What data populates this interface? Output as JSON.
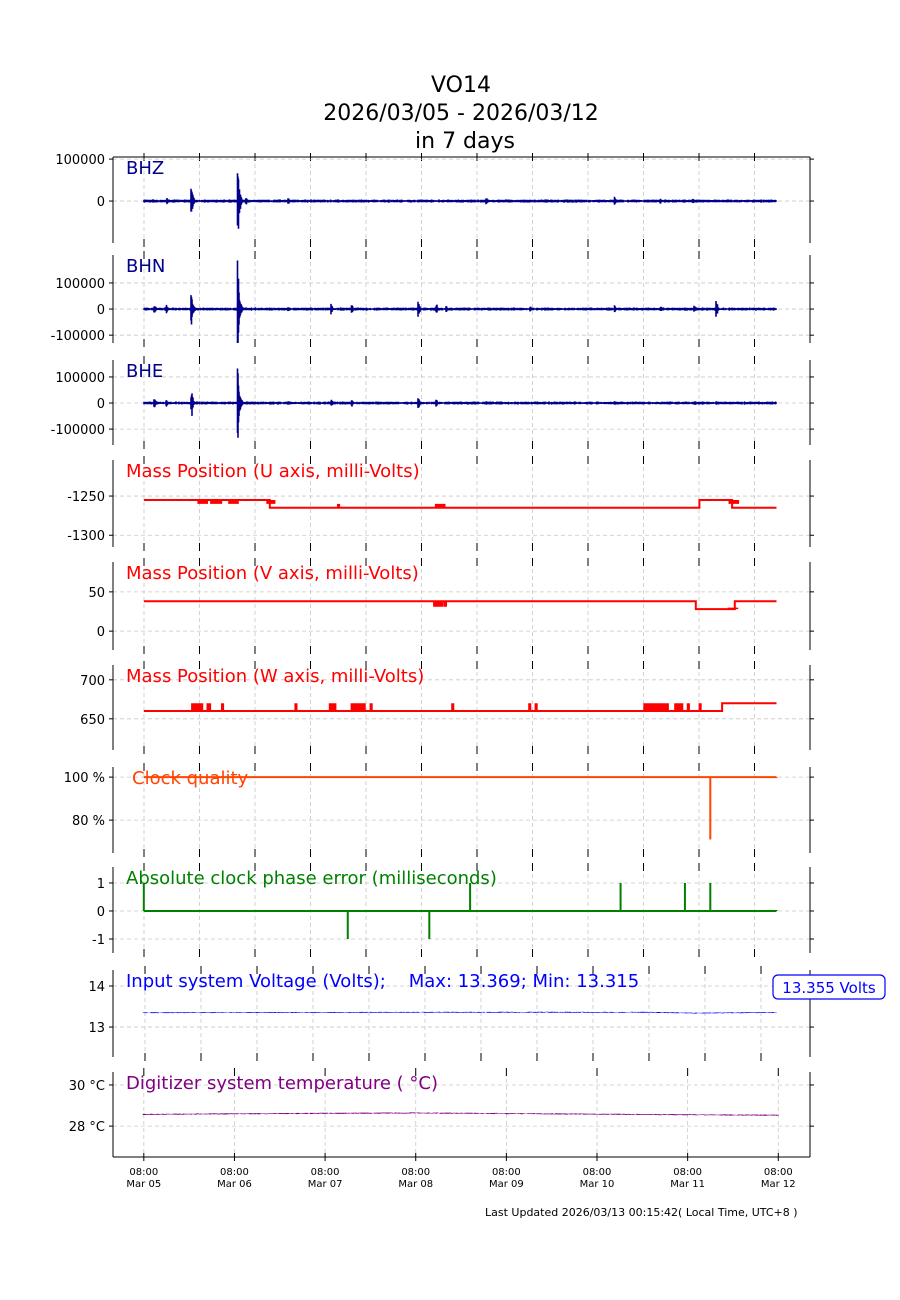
{
  "title": {
    "station": "VO14",
    "range": "2026/03/05 - 2026/03/12",
    "span": "in 7 days"
  },
  "footer": "Last Updated 2026/03/13 00:15:42( Local Time, UTC+8 )",
  "chart_data": {
    "type": "line",
    "x_unit": "days since 2026/03/05 08:00 (UTC+8)",
    "xlim": [
      -0.34,
      7.35
    ],
    "x_ticks": [
      {
        "time": "08:00",
        "date": "Mar 05"
      },
      {
        "time": "08:00",
        "date": "Mar 06"
      },
      {
        "time": "08:00",
        "date": "Mar 07"
      },
      {
        "time": "08:00",
        "date": "Mar 08"
      },
      {
        "time": "08:00",
        "date": "Mar 09"
      },
      {
        "time": "08:00",
        "date": "Mar 10"
      },
      {
        "time": "08:00",
        "date": "Mar 11"
      },
      {
        "time": "08:00",
        "date": "Mar 12"
      }
    ],
    "grid": true,
    "panels": [
      {
        "id": "bhz",
        "label": "BHZ",
        "color": "#00008b",
        "kind": "seismic",
        "ylim": [
          -100000,
          105000
        ],
        "yticks": [
          {
            "v": 100000,
            "t": "100000"
          },
          {
            "v": 0,
            "t": "0"
          }
        ],
        "noise": 2500,
        "events": [
          [
            0.1,
            6000
          ],
          [
            0.26,
            9000
          ],
          [
            0.53,
            40000
          ],
          [
            1.04,
            100000
          ],
          [
            1.13,
            12000
          ],
          [
            1.6,
            9000
          ],
          [
            3.78,
            10000
          ],
          [
            5.2,
            12000
          ],
          [
            5.7,
            7000
          ],
          [
            6.06,
            8000
          ]
        ]
      },
      {
        "id": "bhn",
        "label": "BHN",
        "color": "#00008b",
        "kind": "seismic",
        "ylim": [
          -130000,
          207000
        ],
        "yticks": [
          {
            "v": 100000,
            "t": "100000"
          },
          {
            "v": 0,
            "t": "0"
          },
          {
            "v": -100000,
            "t": "-100000"
          }
        ],
        "noise": 4000,
        "events": [
          [
            0.12,
            20000
          ],
          [
            0.25,
            18000
          ],
          [
            0.53,
            65000
          ],
          [
            1.04,
            195000
          ],
          [
            1.6,
            12000
          ],
          [
            2.07,
            22000
          ],
          [
            2.3,
            18000
          ],
          [
            3.03,
            38000
          ],
          [
            3.23,
            25000
          ],
          [
            3.34,
            15000
          ],
          [
            4.27,
            12000
          ],
          [
            5.2,
            15000
          ],
          [
            5.71,
            10000
          ],
          [
            6.08,
            14000
          ],
          [
            6.32,
            35000
          ]
        ]
      },
      {
        "id": "bhe",
        "label": "BHE",
        "color": "#00008b",
        "kind": "seismic",
        "ylim": [
          -161000,
          165000
        ],
        "yticks": [
          {
            "v": 100000,
            "t": "100000"
          },
          {
            "v": 0,
            "t": "0"
          },
          {
            "v": -100000,
            "t": "-100000"
          }
        ],
        "noise": 4000,
        "events": [
          [
            0.12,
            22000
          ],
          [
            0.25,
            16000
          ],
          [
            0.53,
            55000
          ],
          [
            1.04,
            160000
          ],
          [
            1.6,
            10000
          ],
          [
            2.07,
            18000
          ],
          [
            2.3,
            15000
          ],
          [
            3.03,
            35000
          ],
          [
            3.23,
            15000
          ],
          [
            3.78,
            10000
          ],
          [
            5.2,
            8000
          ],
          [
            6.08,
            10000
          ],
          [
            6.32,
            9000
          ]
        ]
      },
      {
        "id": "massu",
        "label": "Mass Position (U axis, milli-Volts)",
        "color": "#ff0000",
        "kind": "step",
        "ylim": [
          -1315,
          -1204
        ],
        "yticks": [
          {
            "v": -1250,
            "t": "-1250"
          },
          {
            "v": -1300,
            "t": "-1300"
          }
        ],
        "steps": [
          [
            0,
            -1255
          ],
          [
            1.39,
            -1265
          ],
          [
            6.13,
            -1255
          ],
          [
            6.49,
            -1265
          ],
          [
            6.98,
            -1265
          ]
        ],
        "glitches": [
          [
            0.6,
            0.7,
            -1260
          ],
          [
            0.74,
            0.87,
            -1260
          ],
          [
            0.94,
            1.05,
            -1260
          ],
          [
            1.36,
            1.45,
            -1260
          ],
          [
            2.14,
            2.16,
            -1260
          ],
          [
            3.22,
            3.32,
            -1260
          ],
          [
            6.46,
            6.56,
            -1260
          ]
        ]
      },
      {
        "id": "massv",
        "label": "Mass Position (V axis, milli-Volts)",
        "color": "#ff0000",
        "kind": "step",
        "ylim": [
          -24,
          88
        ],
        "yticks": [
          {
            "v": 50,
            "t": "50"
          },
          {
            "v": 0,
            "t": "0"
          }
        ],
        "steps": [
          [
            0,
            38
          ],
          [
            6.09,
            28
          ],
          [
            6.52,
            38
          ],
          [
            6.98,
            38
          ]
        ],
        "glitches": [
          [
            3.2,
            3.3,
            31
          ],
          [
            3.32,
            3.34,
            31
          ],
          [
            6.45,
            6.55,
            30
          ]
        ]
      },
      {
        "id": "massw",
        "label": "Mass Position (W axis, milli-Volts)",
        "color": "#ff0000",
        "kind": "step",
        "ylim": [
          610,
          719
        ],
        "yticks": [
          {
            "v": 700,
            "t": "700"
          },
          {
            "v": 650,
            "t": "650"
          }
        ],
        "steps": [
          [
            0,
            660
          ],
          [
            6.15,
            660
          ],
          [
            6.16,
            660
          ],
          [
            6.38,
            670
          ],
          [
            6.98,
            670
          ]
        ],
        "glitches": [
          [
            0.53,
            0.66,
            670
          ],
          [
            0.7,
            0.74,
            670
          ],
          [
            0.86,
            0.88,
            670
          ],
          [
            1.67,
            1.7,
            670
          ],
          [
            2.05,
            2.12,
            670
          ],
          [
            2.29,
            2.45,
            670
          ],
          [
            2.5,
            2.53,
            670
          ],
          [
            3.4,
            3.42,
            670
          ],
          [
            4.25,
            4.27,
            670
          ],
          [
            4.32,
            4.34,
            670
          ],
          [
            5.52,
            5.8,
            670
          ],
          [
            5.86,
            5.95,
            670
          ],
          [
            6.0,
            6.02,
            670
          ],
          [
            6.13,
            6.16,
            670
          ]
        ]
      },
      {
        "id": "clock",
        "label": "Clock quality",
        "color": "#ff4500",
        "kind": "step",
        "ylim": [
          64.7,
          104.7
        ],
        "yticks": [
          {
            "v": 100,
            "t": "100 %"
          },
          {
            "v": 80,
            "t": "80 %"
          }
        ],
        "steps": [
          [
            0,
            100
          ],
          [
            6.98,
            100
          ]
        ],
        "spikes": [
          [
            6.25,
            71
          ]
        ]
      },
      {
        "id": "phase",
        "label": "Absolute clock phase error (milliseconds)",
        "color": "#008000",
        "kind": "step",
        "ylim": [
          -1.5,
          1.57
        ],
        "yticks": [
          {
            "v": 1,
            "t": "1"
          },
          {
            "v": 0,
            "t": "0"
          },
          {
            "v": -1,
            "t": "-1"
          }
        ],
        "steps": [
          [
            0,
            0
          ],
          [
            6.98,
            0
          ]
        ],
        "spikes": [
          [
            0,
            1
          ],
          [
            2.25,
            -1
          ],
          [
            3.15,
            -1
          ],
          [
            3.6,
            1
          ],
          [
            5.26,
            1
          ],
          [
            5.97,
            1
          ],
          [
            6.25,
            1
          ]
        ]
      },
      {
        "id": "voltage",
        "label": "Input system Voltage (Volts);    Max: 13.369; Min: 13.315",
        "color": "#0000ff",
        "kind": "flat",
        "ylim": [
          12.27,
          14.39
        ],
        "yticks": [
          {
            "v": 14,
            "t": "14"
          },
          {
            "v": 13,
            "t": "13"
          }
        ],
        "level": [
          [
            0,
            13.35
          ],
          [
            3.5,
            13.36
          ],
          [
            5.5,
            13.36
          ],
          [
            6.1,
            13.34
          ],
          [
            6.98,
            13.355
          ]
        ],
        "jitter": 0.012,
        "annotation": "13.355 Volts"
      },
      {
        "id": "temp",
        "label": "Digitizer system temperature ( °C)",
        "color": "#800080",
        "kind": "flat",
        "ylim": [
          26.5,
          30.63
        ],
        "yticks": [
          {
            "v": 30,
            "t": "30 °C"
          },
          {
            "v": 28,
            "t": "28 °C"
          }
        ],
        "level": [
          [
            0,
            28.57
          ],
          [
            1.0,
            28.6
          ],
          [
            3.0,
            28.64
          ],
          [
            5.0,
            28.58
          ],
          [
            7.0,
            28.53
          ]
        ],
        "jitter": 0.03
      }
    ]
  }
}
